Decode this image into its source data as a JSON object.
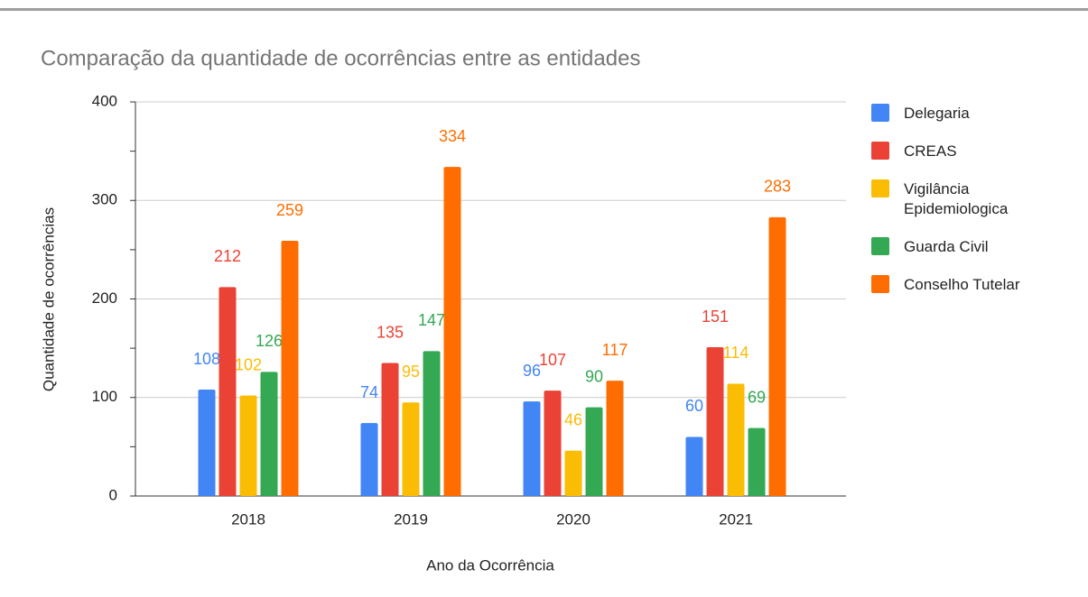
{
  "chart_data": {
    "type": "bar",
    "title": "Comparação da quantidade de ocorrências entre as entidades",
    "x_label": "Ano da Ocorrência",
    "y_label": "Quantidade de ocorrências",
    "categories": [
      "2018",
      "2019",
      "2020",
      "2021"
    ],
    "series": [
      {
        "name": "Delegaria",
        "color": "#4285f4",
        "values": [
          108,
          74,
          96,
          60
        ]
      },
      {
        "name": "CREAS",
        "color": "#ea4335",
        "values": [
          212,
          135,
          107,
          151
        ]
      },
      {
        "name": "Vigilância Epidemiologica",
        "color": "#fbbc04",
        "values": [
          102,
          95,
          46,
          114
        ]
      },
      {
        "name": "Guarda Civil",
        "color": "#34a853",
        "values": [
          126,
          147,
          90,
          69
        ]
      },
      {
        "name": "Conselho Tutelar",
        "color": "#ff6d01",
        "values": [
          259,
          334,
          117,
          283
        ]
      }
    ],
    "ylim": [
      0,
      400
    ],
    "yticks": [
      0,
      100,
      200,
      300,
      400
    ],
    "grid": true,
    "legend": "right"
  }
}
